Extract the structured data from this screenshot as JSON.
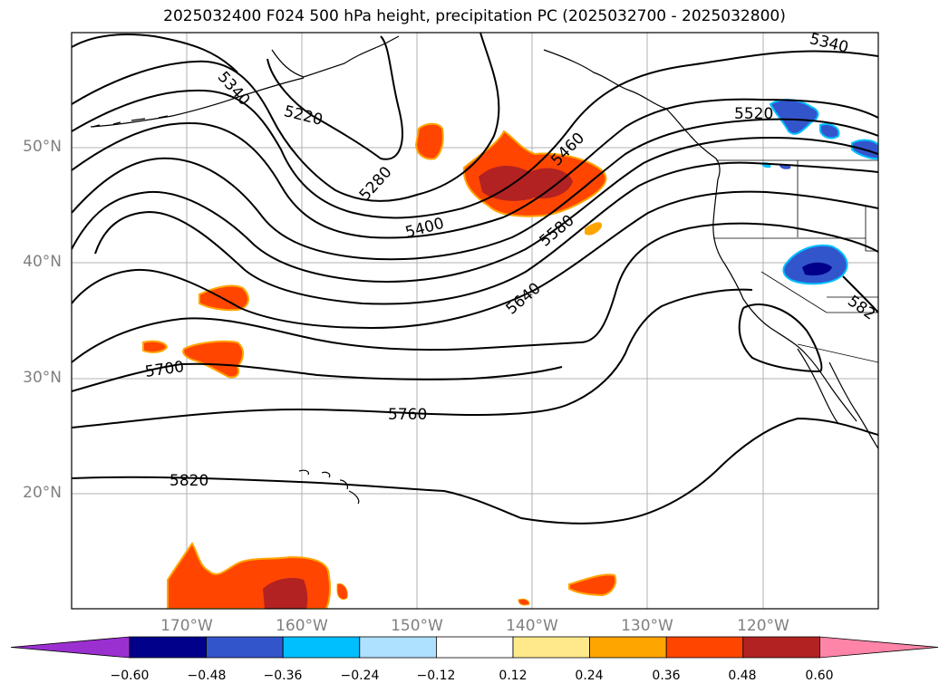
{
  "title": "2025032400 F024 500 hPa height, precipitation PC (2025032700 - 2025032800)",
  "map": {
    "lat_labels": [
      "50°N",
      "40°N",
      "30°N",
      "20°N"
    ],
    "lon_labels": [
      "170°W",
      "160°W",
      "150°W",
      "140°W",
      "130°W",
      "120°W"
    ],
    "lon_range": [
      -180,
      -110
    ],
    "lat_range": [
      10,
      60
    ],
    "contour_labels": [
      "5340",
      "5220",
      "5280",
      "5460",
      "5400",
      "5580",
      "5640",
      "5520",
      "5340",
      "5700",
      "5760",
      "5820",
      "582"
    ]
  },
  "colorbar": {
    "ticks": [
      "−0.60",
      "−0.48",
      "−0.36",
      "−0.24",
      "−0.12",
      "0.12",
      "0.24",
      "0.36",
      "0.48",
      "0.60"
    ],
    "colors": [
      "#9b30d0",
      "#00008b",
      "#3355cc",
      "#00bfff",
      "#aee0ff",
      "#ffffff",
      "#ffe98a",
      "#ffa500",
      "#ff4500",
      "#b22222",
      "#ff85a8"
    ]
  }
}
